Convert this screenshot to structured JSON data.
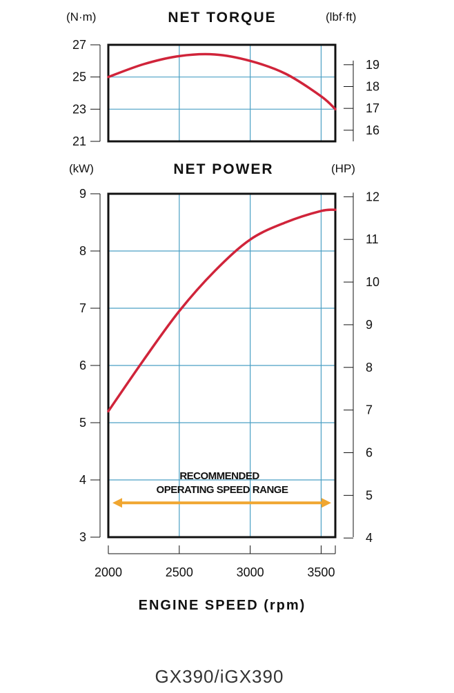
{
  "chart_data": [
    {
      "type": "line",
      "title": "NET TORQUE",
      "left_unit": "(N·m)",
      "right_unit": "(lbf·ft)",
      "x": [
        2000,
        2250,
        2500,
        2750,
        3000,
        3250,
        3500,
        3600
      ],
      "series": [
        {
          "values": [
            25.0,
            25.8,
            26.3,
            26.4,
            26.0,
            25.2,
            23.8,
            23.0
          ],
          "color": "#d0243a"
        }
      ],
      "xlim": [
        2000,
        3600
      ],
      "ylim": [
        21,
        27
      ],
      "y_ticks": [
        "21",
        "23",
        "25",
        "27"
      ],
      "right_ylim": [
        15.49,
        19.91
      ],
      "right_ticks": [
        "16",
        "17",
        "18",
        "19"
      ],
      "x_gridlines": [
        2500,
        3000,
        3500
      ],
      "y_gridlines": [
        23,
        25
      ],
      "grid": true,
      "grid_color": "#4a9fc4"
    },
    {
      "type": "line",
      "title": "NET POWER",
      "left_unit": "(kW)",
      "right_unit": "(HP)",
      "x": [
        2000,
        2250,
        2500,
        2750,
        3000,
        3250,
        3500,
        3600
      ],
      "series": [
        {
          "values": [
            5.2,
            6.1,
            6.95,
            7.65,
            8.2,
            8.5,
            8.7,
            8.72
          ],
          "color": "#d0243a"
        }
      ],
      "xlim": [
        2000,
        3600
      ],
      "ylim": [
        3,
        9
      ],
      "y_ticks": [
        "3",
        "4",
        "5",
        "6",
        "7",
        "8",
        "9"
      ],
      "right_ylim": [
        4.02,
        12.07
      ],
      "right_ticks": [
        "4",
        "5",
        "6",
        "7",
        "8",
        "9",
        "10",
        "11",
        "12"
      ],
      "x_gridlines": [
        2500,
        3000,
        3500
      ],
      "y_gridlines": [
        4,
        5,
        6,
        7,
        8
      ],
      "grid": true,
      "grid_color": "#4a9fc4",
      "range_annotation": {
        "label_line1": "RECOMMENDED",
        "label_line2": "OPERATING SPEED RANGE",
        "from": 2000,
        "to": 3600,
        "y": 3.6,
        "color": "#f0a630"
      }
    }
  ],
  "x_ticks": [
    "2000",
    "2500",
    "3000",
    "3500"
  ],
  "x_tick_values": [
    2000,
    2500,
    3000,
    3500
  ],
  "xlabel": "ENGINE SPEED (rpm)",
  "footer": "GX390/iGX390"
}
